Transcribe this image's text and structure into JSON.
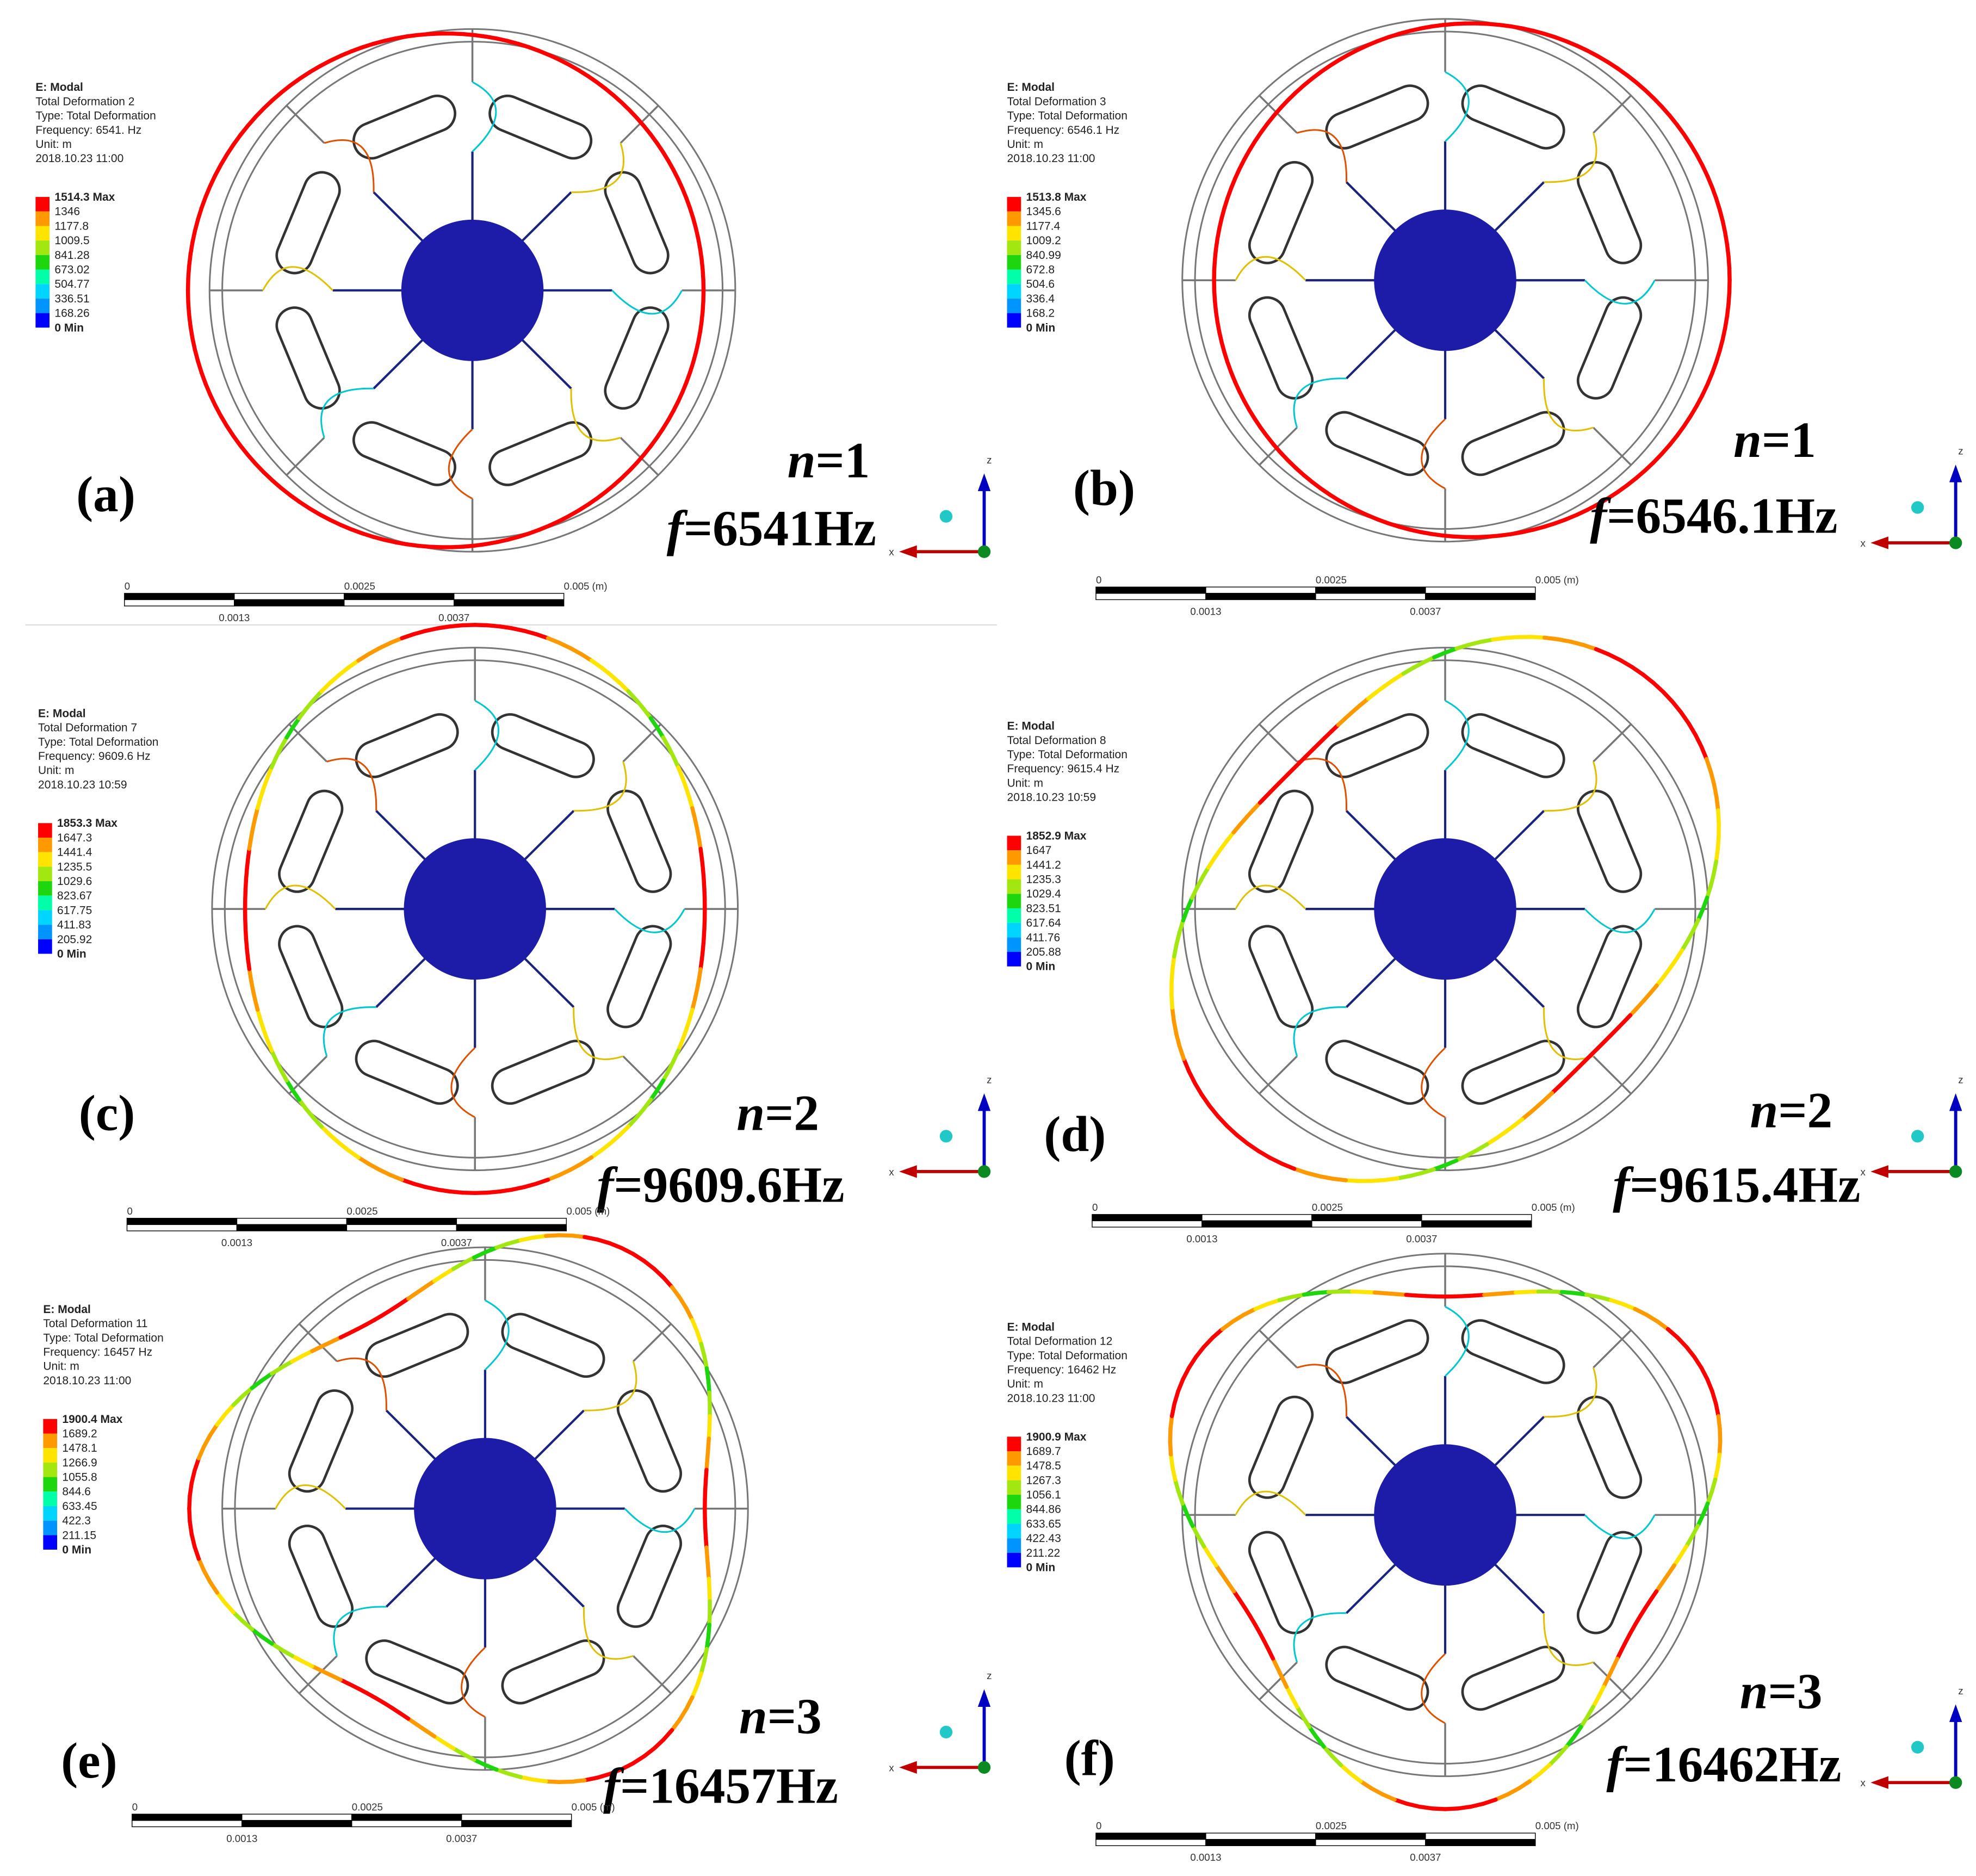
{
  "panels": [
    {
      "label": "(a)",
      "mode": "n=1",
      "frequency": "f=6541Hz",
      "legend": {
        "lines": [
          "E: Modal",
          "Total Deformation 2",
          "Type: Total Deformation",
          "Frequency: 6541. Hz",
          "Unit: m",
          "2018.10.23 11:00"
        ],
        "values": [
          "1514.3 Max",
          "1346",
          "1177.8",
          "1009.5",
          "841.28",
          "673.02",
          "504.77",
          "336.51",
          "168.26",
          "0 Min"
        ]
      }
    },
    {
      "label": "(b)",
      "mode": "n=1",
      "frequency": "f=6546.1Hz",
      "legend": {
        "lines": [
          "E: Modal",
          "Total Deformation 3",
          "Type: Total Deformation",
          "Frequency: 6546.1 Hz",
          "Unit: m",
          "2018.10.23 11:00"
        ],
        "values": [
          "1513.8 Max",
          "1345.6",
          "1177.4",
          "1009.2",
          "840.99",
          "672.8",
          "504.6",
          "336.4",
          "168.2",
          "0 Min"
        ]
      }
    },
    {
      "label": "(c)",
      "mode": "n=2",
      "frequency": "f=9609.6Hz",
      "legend": {
        "lines": [
          "E: Modal",
          "Total Deformation 7",
          "Type: Total Deformation",
          "Frequency: 9609.6 Hz",
          "Unit: m",
          "2018.10.23 10:59"
        ],
        "values": [
          "1853.3 Max",
          "1647.3",
          "1441.4",
          "1235.5",
          "1029.6",
          "823.67",
          "617.75",
          "411.83",
          "205.92",
          "0 Min"
        ]
      }
    },
    {
      "label": "(d)",
      "mode": "n=2",
      "frequency": "f=9615.4Hz",
      "legend": {
        "lines": [
          "E: Modal",
          "Total Deformation 8",
          "Type: Total Deformation",
          "Frequency: 9615.4 Hz",
          "Unit: m",
          "2018.10.23 10:59"
        ],
        "values": [
          "1852.9 Max",
          "1647",
          "1441.2",
          "1235.3",
          "1029.4",
          "823.51",
          "617.64",
          "411.76",
          "205.88",
          "0 Min"
        ]
      }
    },
    {
      "label": "(e)",
      "mode": "n=3",
      "frequency": "f=16457Hz",
      "legend": {
        "lines": [
          "E: Modal",
          "Total Deformation 11",
          "Type: Total Deformation",
          "Frequency: 16457 Hz",
          "Unit: m",
          "2018.10.23 11:00"
        ],
        "values": [
          "1900.4 Max",
          "1689.2",
          "1478.1",
          "1266.9",
          "1055.8",
          "844.6",
          "633.45",
          "422.3",
          "211.15",
          "0 Min"
        ]
      }
    },
    {
      "label": "(f)",
      "mode": "n=3",
      "frequency": "f=16462Hz",
      "legend": {
        "lines": [
          "E: Modal",
          "Total Deformation 12",
          "Type: Total Deformation",
          "Frequency: 16462 Hz",
          "Unit: m",
          "2018.10.23 11:00"
        ],
        "values": [
          "1900.9 Max",
          "1689.7",
          "1478.5",
          "1267.3",
          "1056.1",
          "844.86",
          "633.65",
          "422.43",
          "211.22",
          "0 Min"
        ]
      }
    }
  ],
  "scale_bar": {
    "top": [
      "0",
      "0.0025",
      "0.005 (m)"
    ],
    "bottom": [
      "0.0013",
      "0.0037"
    ]
  },
  "axes": {
    "z": "z",
    "x": "x"
  }
}
